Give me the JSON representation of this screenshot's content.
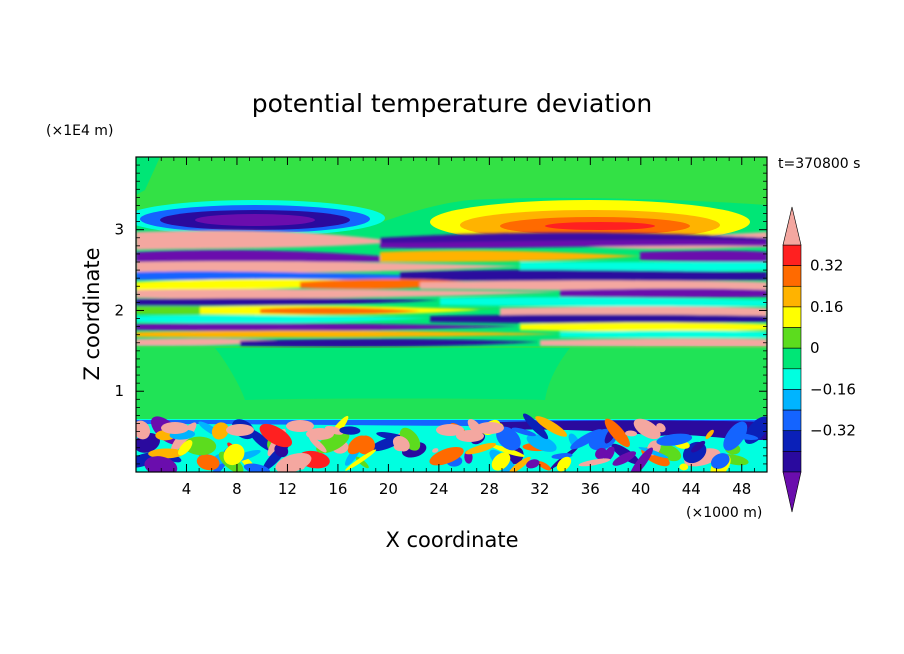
{
  "chart_data": {
    "type": "heatmap",
    "title": "potential temperature deviation",
    "xlabel": "X coordinate",
    "ylabel": "Z coordinate",
    "x_unit": "(×1000 m)",
    "y_unit": "(×1E4 m)",
    "time_label": "t=370800 s",
    "xlim": [
      0,
      50
    ],
    "ylim": [
      0,
      3.9
    ],
    "x_ticks": [
      "4",
      "8",
      "12",
      "16",
      "20",
      "24",
      "28",
      "32",
      "36",
      "40",
      "44",
      "48"
    ],
    "y_ticks": [
      "1",
      "2",
      "3"
    ],
    "x_tick_values": [
      4,
      8,
      12,
      16,
      20,
      24,
      28,
      32,
      36,
      40,
      44,
      48
    ],
    "y_tick_values": [
      1,
      2,
      3
    ],
    "colorbar": {
      "levels": [
        -0.48,
        -0.4,
        -0.32,
        -0.24,
        -0.16,
        -0.08,
        0,
        0.08,
        0.16,
        0.24,
        0.32,
        0.4,
        0.48
      ],
      "colors": [
        "#6a0dad",
        "#2a0a9e",
        "#0a20b8",
        "#1464ff",
        "#00b4ff",
        "#00ffe0",
        "#00e676",
        "#5cdc1e",
        "#ffff00",
        "#ffb300",
        "#ff6a00",
        "#ff2020",
        "#f4a7a0"
      ],
      "tick_labels": [
        "0.32",
        "0.16",
        "0",
        "−0.16",
        "−0.32"
      ],
      "tick_values": [
        0.32,
        0.16,
        0,
        -0.16,
        -0.32
      ]
    }
  }
}
